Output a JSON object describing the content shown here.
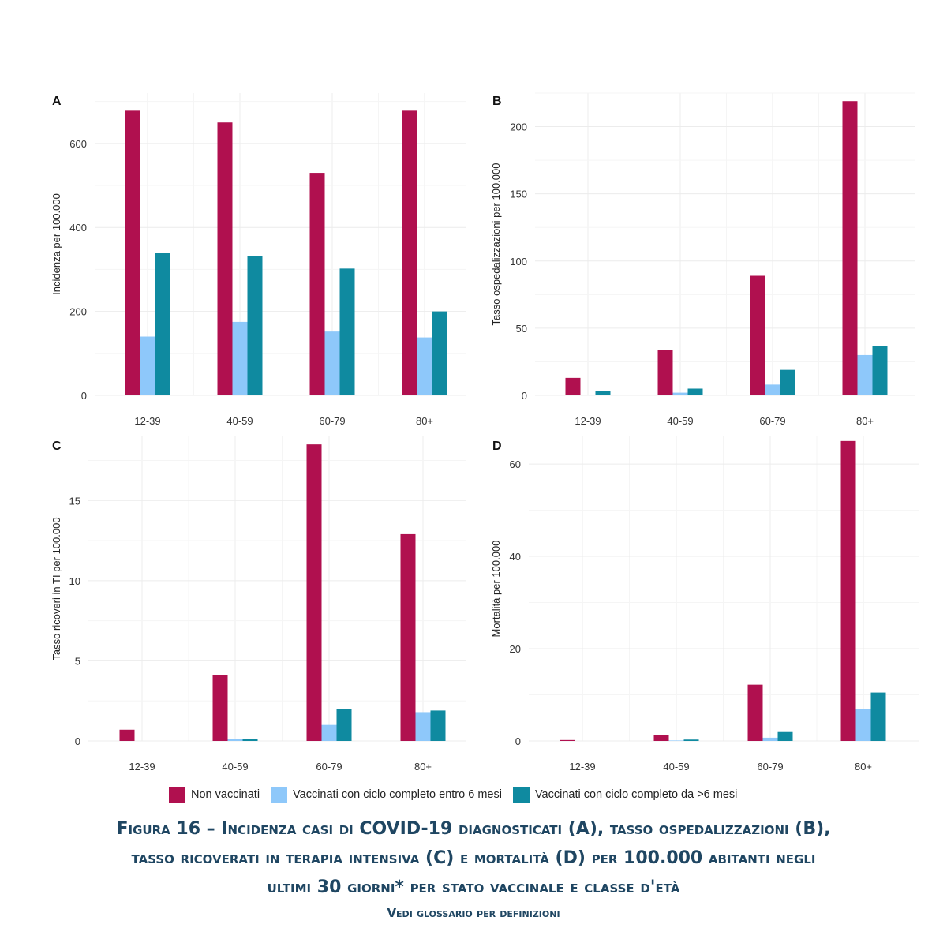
{
  "chart_data": [
    {
      "panel": "A",
      "type": "bar",
      "ylabel": "Incidenza per 100.000",
      "categories": [
        "12-39",
        "40-59",
        "60-79",
        "80+"
      ],
      "ylim": [
        0,
        720
      ],
      "yticks": [
        0,
        200,
        400,
        600
      ],
      "grid": true,
      "series": [
        {
          "name": "Non vaccinati",
          "values": [
            678,
            650,
            530,
            678
          ]
        },
        {
          "name": "Vaccinati con ciclo completo entro 6 mesi",
          "values": [
            140,
            175,
            152,
            138
          ]
        },
        {
          "name": "Vaccinati con ciclo completo da >6 mesi",
          "values": [
            340,
            332,
            302,
            200
          ]
        }
      ]
    },
    {
      "panel": "B",
      "type": "bar",
      "ylabel": "Tasso ospedalizzazioni per 100.000",
      "categories": [
        "12-39",
        "40-59",
        "60-79",
        "80+"
      ],
      "ylim": [
        0,
        225
      ],
      "yticks": [
        0,
        50,
        100,
        150,
        200
      ],
      "grid": true,
      "series": [
        {
          "name": "Non vaccinati",
          "values": [
            13,
            34,
            89,
            219
          ]
        },
        {
          "name": "Vaccinati con ciclo completo entro 6 mesi",
          "values": [
            0.5,
            2,
            8,
            30
          ]
        },
        {
          "name": "Vaccinati con ciclo completo da >6 mesi",
          "values": [
            3,
            5,
            19,
            37
          ]
        }
      ]
    },
    {
      "panel": "C",
      "type": "bar",
      "ylabel": "Tasso ricoveri in TI per 100.000",
      "categories": [
        "12-39",
        "40-59",
        "60-79",
        "80+"
      ],
      "ylim": [
        0,
        19
      ],
      "yticks": [
        0,
        5,
        10,
        15
      ],
      "grid": true,
      "series": [
        {
          "name": "Non vaccinati",
          "values": [
            0.7,
            4.1,
            18.5,
            12.9
          ]
        },
        {
          "name": "Vaccinati con ciclo completo entro 6 mesi",
          "values": [
            0,
            0.1,
            1.0,
            1.8
          ]
        },
        {
          "name": "Vaccinati con ciclo completo da >6 mesi",
          "values": [
            0,
            0.1,
            2.0,
            1.9
          ]
        }
      ]
    },
    {
      "panel": "D",
      "type": "bar",
      "ylabel": "Mortalità per 100.000",
      "categories": [
        "12-39",
        "40-59",
        "60-79",
        "80+"
      ],
      "ylim": [
        0,
        66
      ],
      "yticks": [
        0,
        20,
        40,
        60
      ],
      "grid": true,
      "series": [
        {
          "name": "Non vaccinati",
          "values": [
            0.2,
            1.3,
            12.2,
            65
          ]
        },
        {
          "name": "Vaccinati con ciclo completo entro 6 mesi",
          "values": [
            0,
            0.1,
            0.7,
            7
          ]
        },
        {
          "name": "Vaccinati con ciclo completo da >6 mesi",
          "values": [
            0,
            0.3,
            2.1,
            10.5
          ]
        }
      ]
    }
  ],
  "colors": {
    "Non vaccinati": "#b0104f",
    "Vaccinati con ciclo completo entro 6 mesi": "#8ec8fa",
    "Vaccinati con ciclo completo da >6 mesi": "#0f8aa0",
    "caption": "#1f4662"
  },
  "legend": {
    "items": [
      {
        "label": "Non vaccinati",
        "color": "#b0104f"
      },
      {
        "label": "Vaccinati con ciclo completo entro 6 mesi",
        "color": "#8ec8fa"
      },
      {
        "label": "Vaccinati con ciclo completo da >6 mesi",
        "color": "#0f8aa0"
      }
    ]
  },
  "caption": {
    "lines": [
      "Figura 16 – Incidenza casi di COVID-19 diagnosticati (A), tasso ospedalizzazioni (B),",
      "tasso ricoverati in terapia intensiva (C) e mortalità (D) per 100.000 abitanti negli",
      "ultimi 30 giorni* per stato vaccinale e classe d'età"
    ],
    "note": "Vedi glossario per definizioni"
  }
}
